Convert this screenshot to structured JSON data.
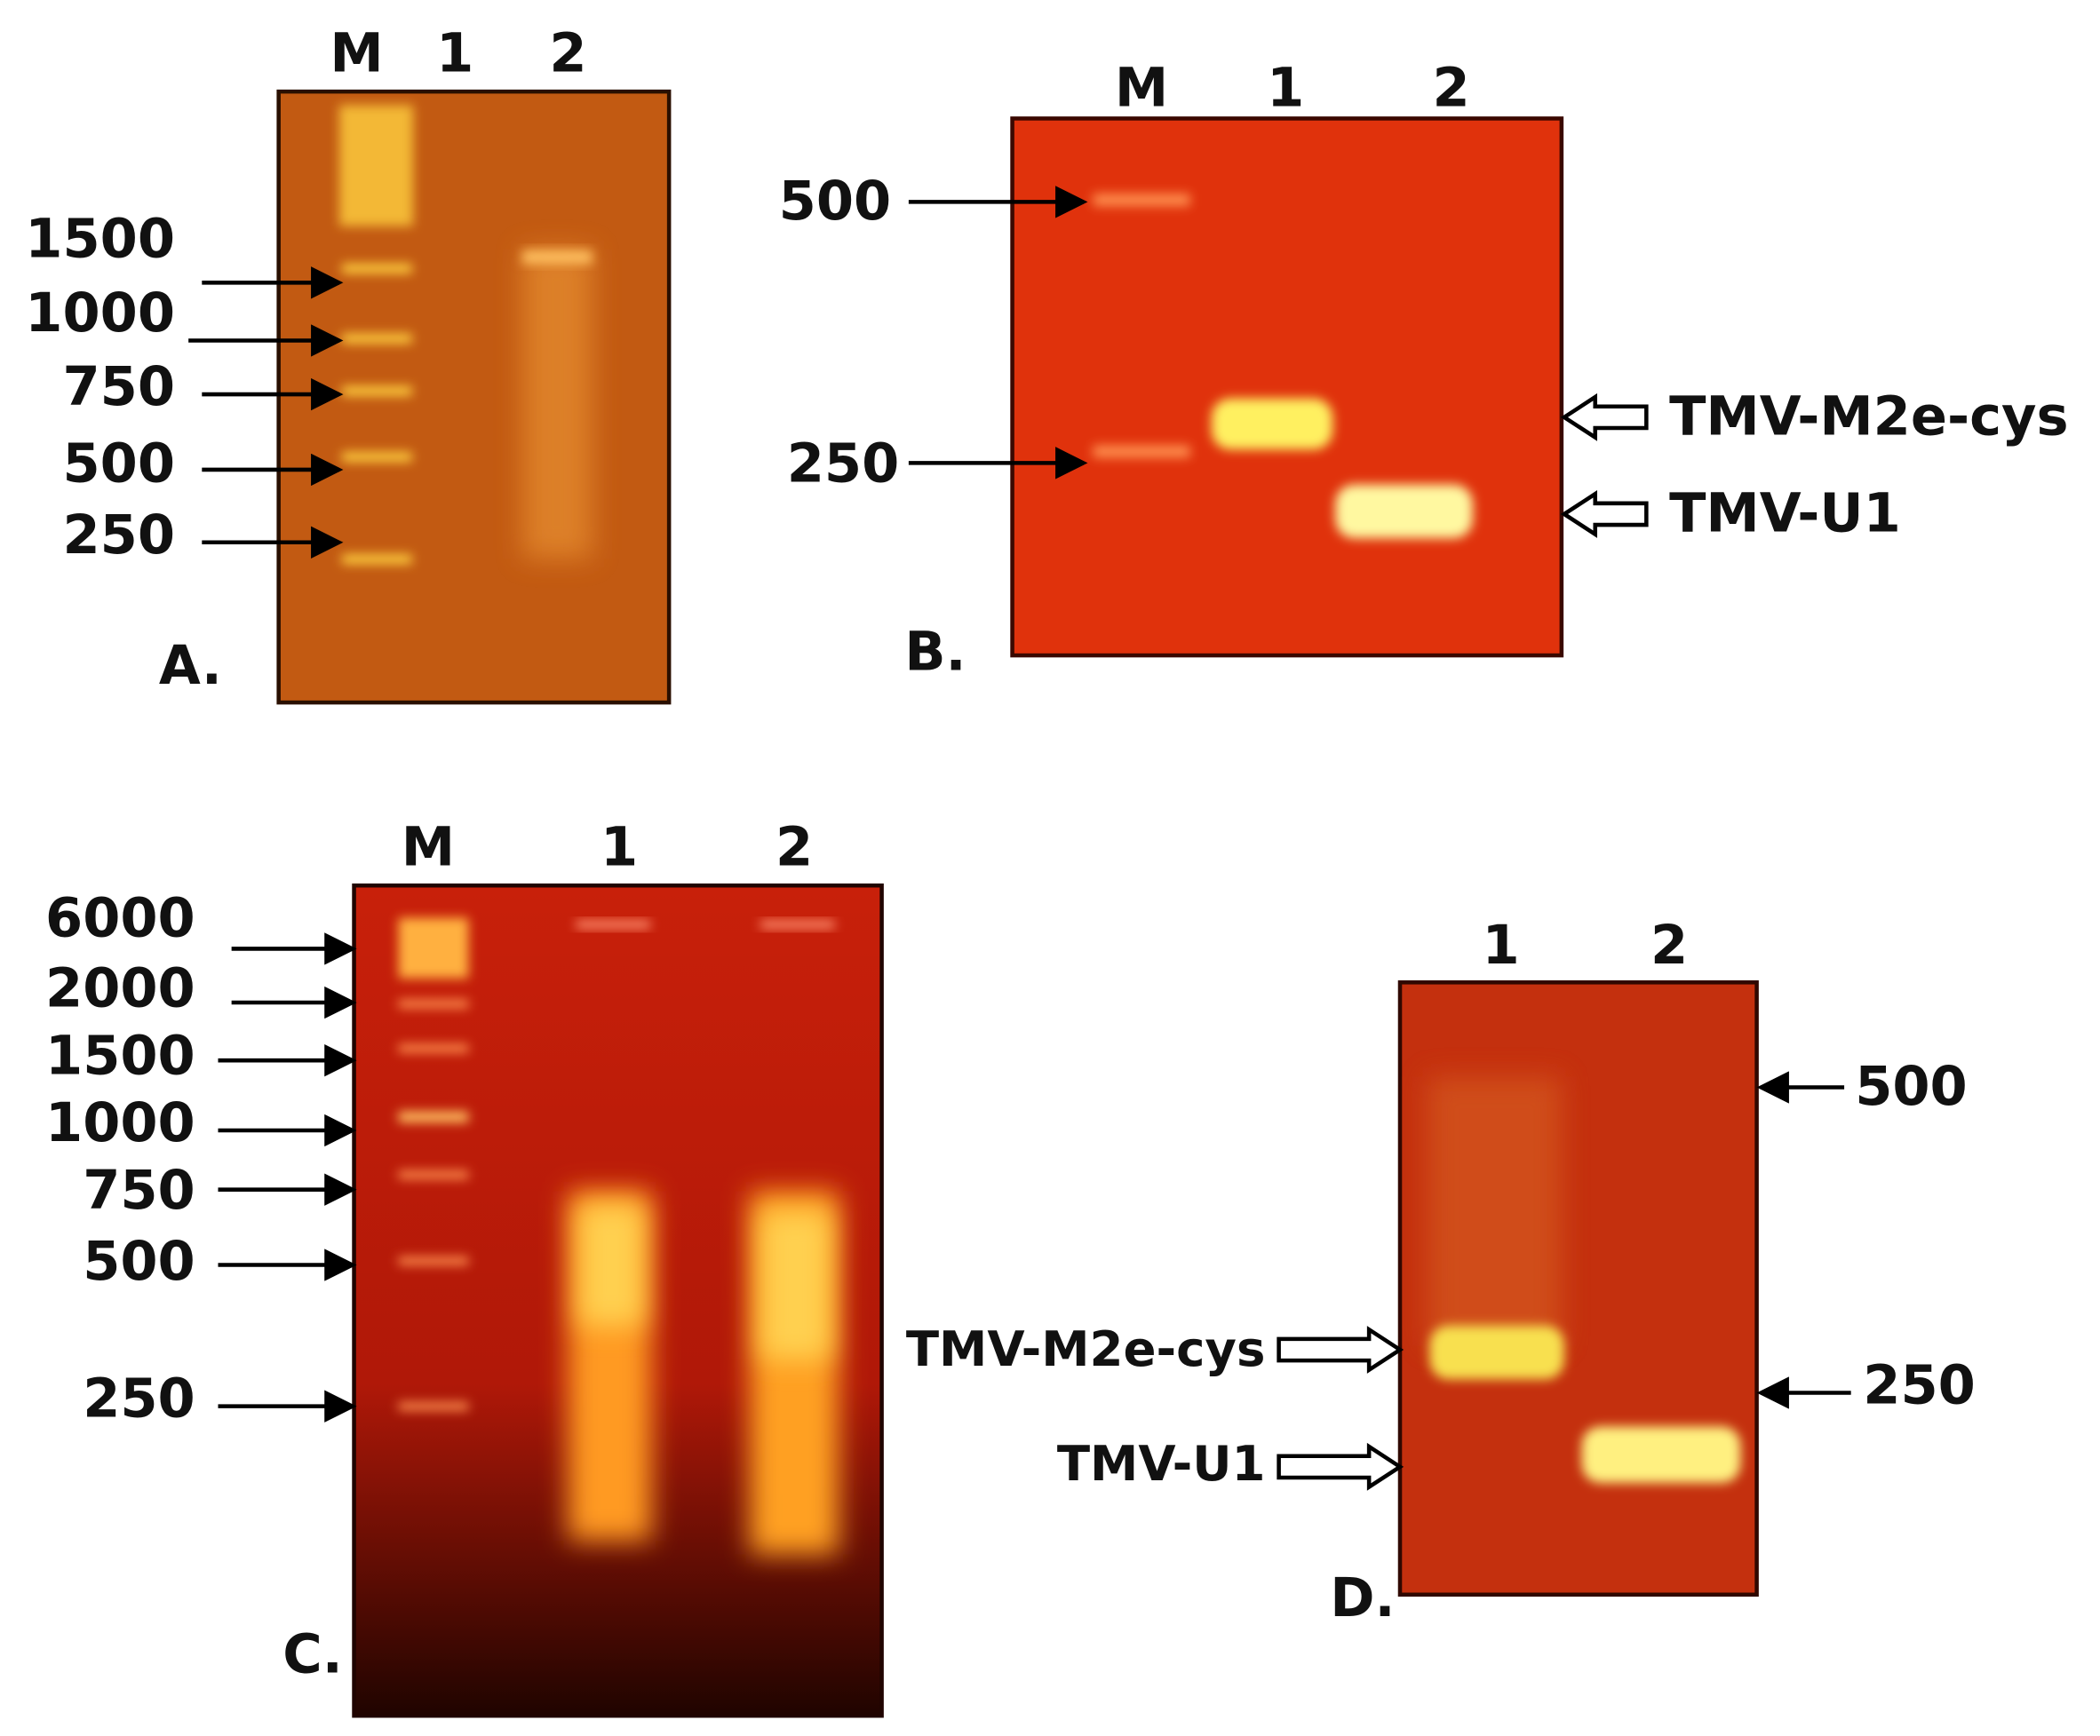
{
  "panels": [
    {
      "label": "A.",
      "lanes": [
        "M",
        "1",
        "2"
      ],
      "markers": [
        "1500",
        "1000",
        "750",
        "500",
        "250"
      ]
    },
    {
      "label": "B.",
      "lanes": [
        "M",
        "1",
        "2"
      ],
      "markers": [
        "500",
        "250"
      ],
      "bands": [
        "TMV-M2e-cys",
        "TMV-U1"
      ]
    },
    {
      "label": "C.",
      "lanes": [
        "M",
        "1",
        "2"
      ],
      "markers": [
        "6000",
        "2000",
        "1500",
        "1000",
        "750",
        "500",
        "250"
      ]
    },
    {
      "label": "D.",
      "lanes": [
        "1",
        "2"
      ],
      "markers": [
        "500",
        "250"
      ],
      "bands": [
        "TMV-M2e-cys",
        "TMV-U1"
      ]
    }
  ]
}
